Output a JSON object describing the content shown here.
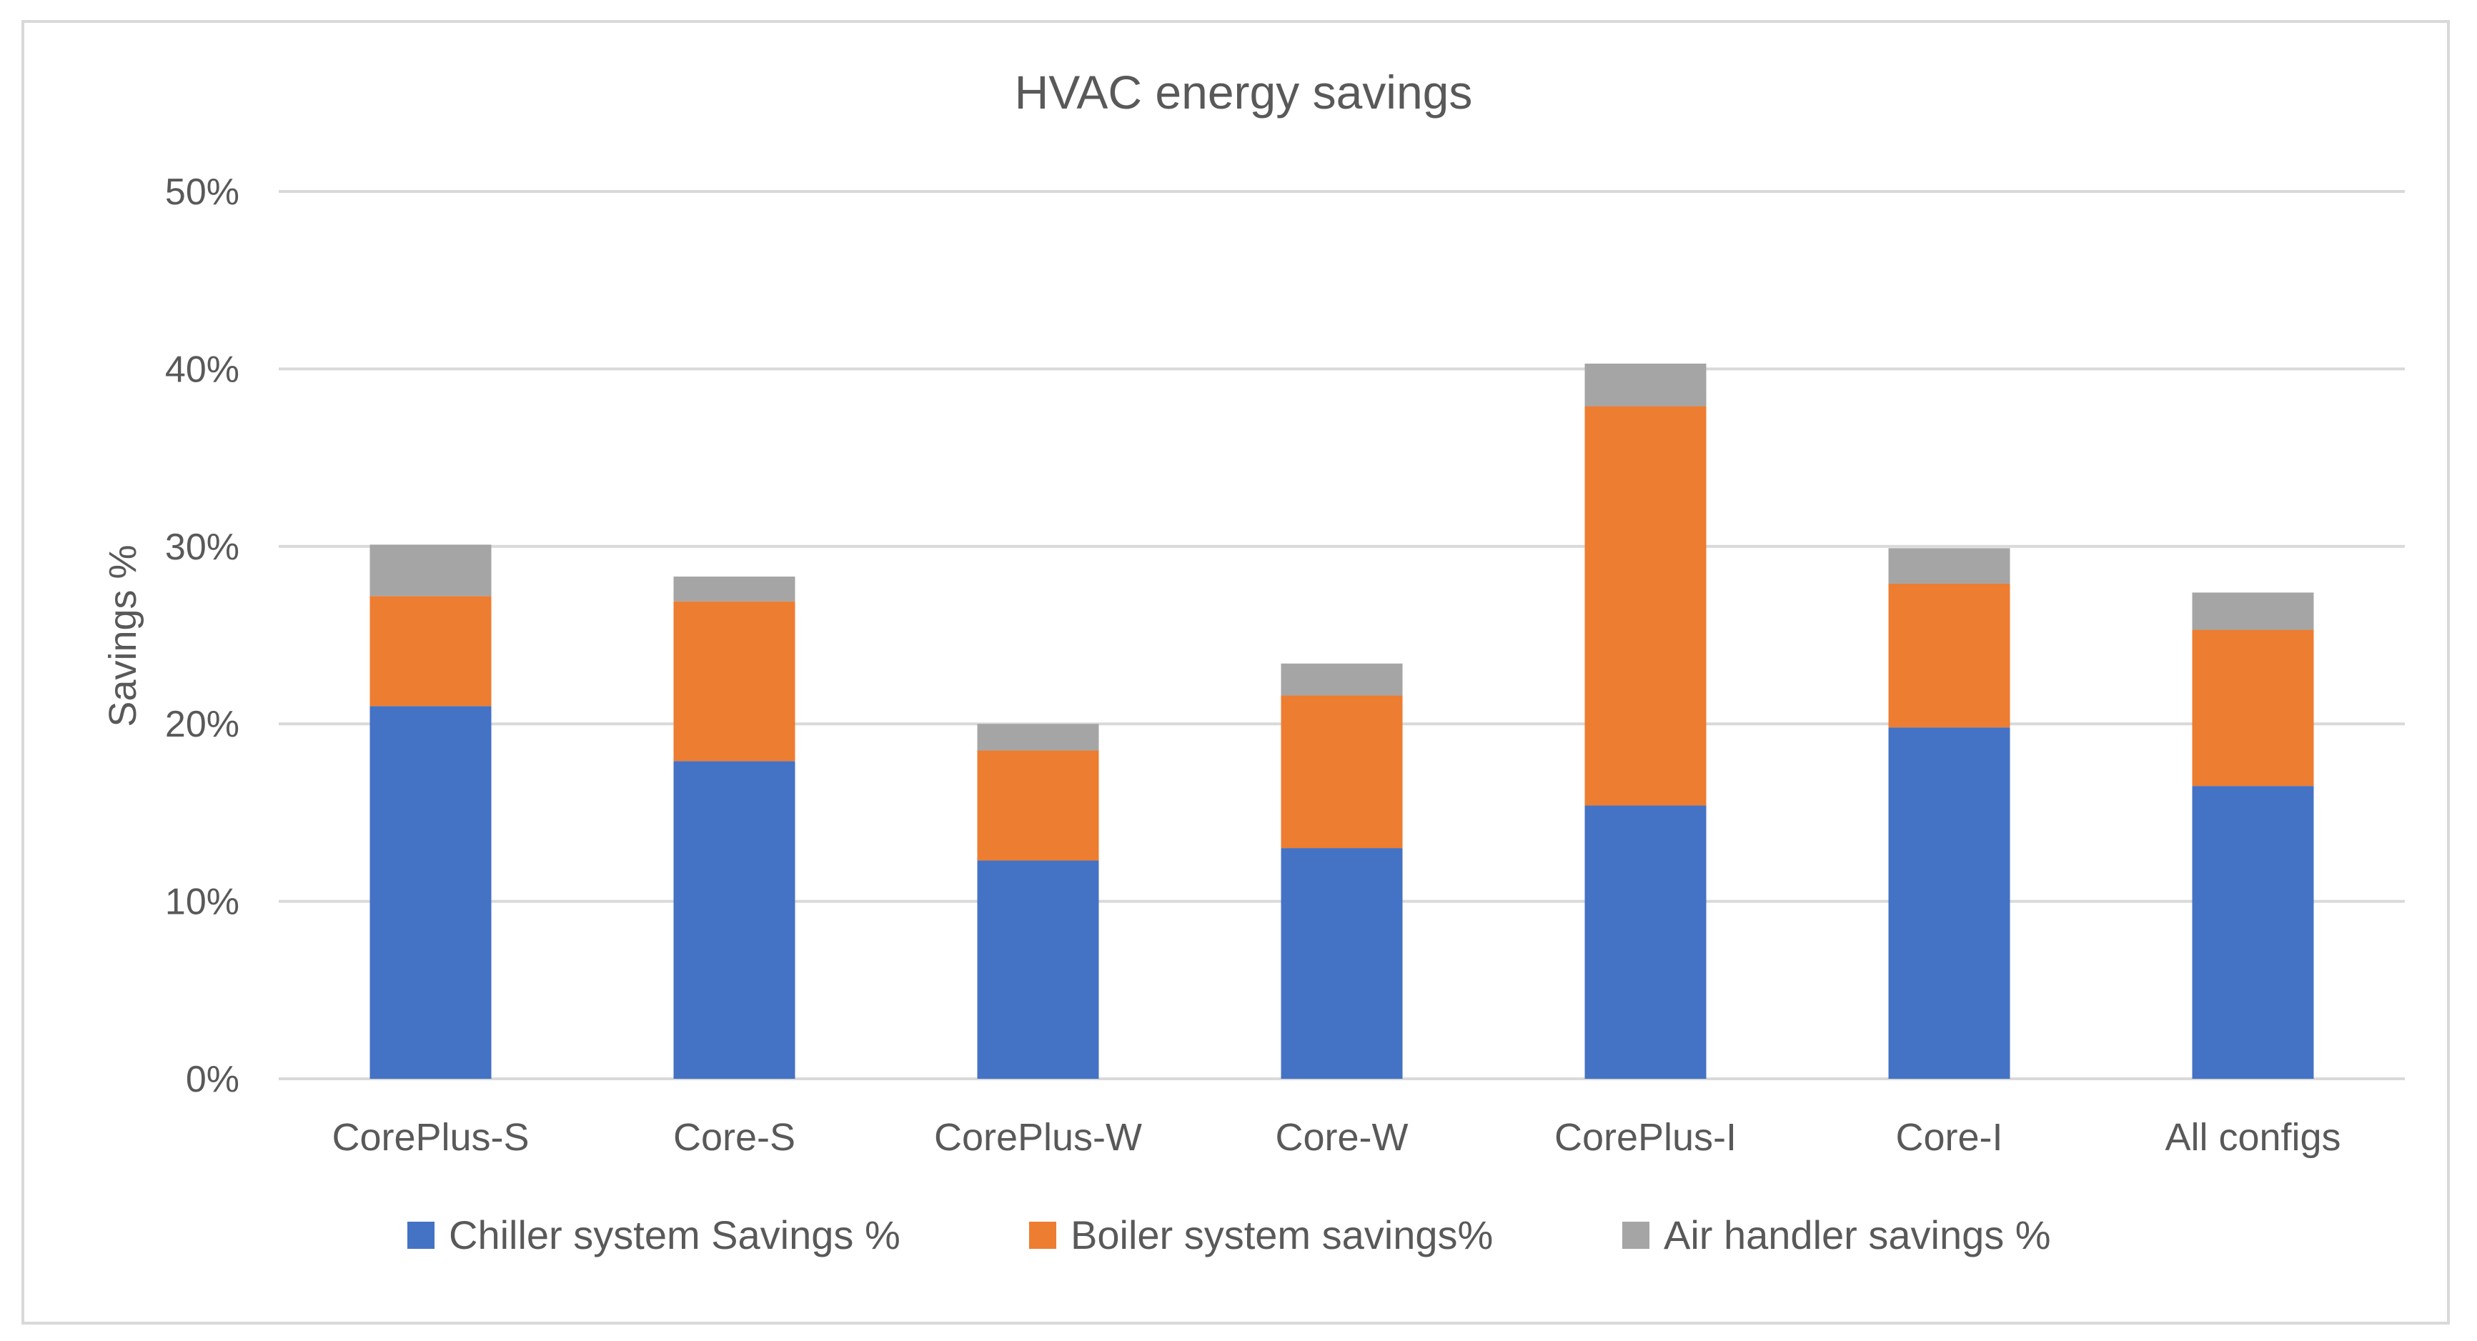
{
  "chart_data": {
    "type": "bar",
    "stacked": true,
    "title": "HVAC energy savings",
    "xlabel": "",
    "ylabel": "Savings %",
    "ylim": [
      0,
      0.5
    ],
    "yticks": [
      0,
      0.1,
      0.2,
      0.3,
      0.4,
      0.5
    ],
    "ytick_labels": [
      "0%",
      "10%",
      "20%",
      "30%",
      "40%",
      "50%"
    ],
    "grid": true,
    "legend_position": "bottom",
    "categories": [
      "CorePlus-S",
      "Core-S",
      "CorePlus-W",
      "Core-W",
      "CorePlus-I",
      "Core-I",
      "All configs"
    ],
    "series": [
      {
        "name": "Chiller system Savings %",
        "color": "#4472c4",
        "values": [
          0.21,
          0.179,
          0.123,
          0.13,
          0.154,
          0.198,
          0.165
        ]
      },
      {
        "name": "Boiler system savings%",
        "color": "#ed7d31",
        "values": [
          0.062,
          0.09,
          0.062,
          0.086,
          0.225,
          0.081,
          0.088
        ]
      },
      {
        "name": "Air handler savings %",
        "color": "#a5a5a5",
        "values": [
          0.029,
          0.014,
          0.015,
          0.018,
          0.024,
          0.02,
          0.021
        ]
      }
    ],
    "colors": {
      "gridline": "#d9d9d9",
      "text": "#595959",
      "frame": "#d9d9d9"
    }
  }
}
